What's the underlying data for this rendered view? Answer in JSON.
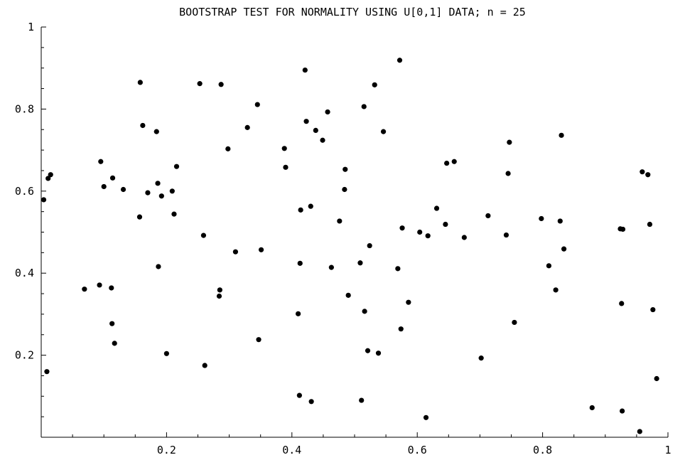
{
  "chart_data": {
    "type": "scatter",
    "title": "BOOTSTRAP TEST FOR NORMALITY USING U[0,1] DATA; n = 25",
    "xlabel": "",
    "ylabel": "",
    "xlim": [
      0,
      1
    ],
    "ylim": [
      0,
      1
    ],
    "x_ticks": [
      0.2,
      0.4,
      0.6,
      0.8,
      1
    ],
    "x_tick_labels": [
      "0.2",
      "0.4",
      "0.6",
      "0.8",
      "1"
    ],
    "y_ticks": [
      0.2,
      0.4,
      0.6,
      0.8,
      1
    ],
    "y_tick_labels": [
      "0.2",
      "0.4",
      "0.6",
      "0.8",
      "1"
    ],
    "grid": false,
    "marker_color": "#000000",
    "points": [
      [
        0.004,
        0.579
      ],
      [
        0.009,
        0.16
      ],
      [
        0.011,
        0.631
      ],
      [
        0.015,
        0.64
      ],
      [
        0.069,
        0.361
      ],
      [
        0.093,
        0.371
      ],
      [
        0.095,
        0.672
      ],
      [
        0.1,
        0.611
      ],
      [
        0.112,
        0.364
      ],
      [
        0.113,
        0.277
      ],
      [
        0.114,
        0.632
      ],
      [
        0.117,
        0.229
      ],
      [
        0.131,
        0.604
      ],
      [
        0.157,
        0.537
      ],
      [
        0.158,
        0.865
      ],
      [
        0.162,
        0.76
      ],
      [
        0.17,
        0.596
      ],
      [
        0.184,
        0.745
      ],
      [
        0.186,
        0.619
      ],
      [
        0.187,
        0.416
      ],
      [
        0.192,
        0.588
      ],
      [
        0.2,
        0.204
      ],
      [
        0.209,
        0.6
      ],
      [
        0.212,
        0.544
      ],
      [
        0.216,
        0.66
      ],
      [
        0.253,
        0.862
      ],
      [
        0.259,
        0.492
      ],
      [
        0.261,
        0.175
      ],
      [
        0.284,
        0.344
      ],
      [
        0.285,
        0.359
      ],
      [
        0.287,
        0.86
      ],
      [
        0.298,
        0.703
      ],
      [
        0.31,
        0.452
      ],
      [
        0.329,
        0.755
      ],
      [
        0.345,
        0.811
      ],
      [
        0.347,
        0.238
      ],
      [
        0.351,
        0.457
      ],
      [
        0.388,
        0.704
      ],
      [
        0.39,
        0.658
      ],
      [
        0.41,
        0.301
      ],
      [
        0.412,
        0.102
      ],
      [
        0.413,
        0.424
      ],
      [
        0.414,
        0.554
      ],
      [
        0.421,
        0.895
      ],
      [
        0.423,
        0.77
      ],
      [
        0.43,
        0.563
      ],
      [
        0.431,
        0.087
      ],
      [
        0.438,
        0.748
      ],
      [
        0.449,
        0.724
      ],
      [
        0.457,
        0.793
      ],
      [
        0.463,
        0.414
      ],
      [
        0.476,
        0.527
      ],
      [
        0.484,
        0.604
      ],
      [
        0.485,
        0.653
      ],
      [
        0.49,
        0.346
      ],
      [
        0.509,
        0.425
      ],
      [
        0.511,
        0.09
      ],
      [
        0.515,
        0.806
      ],
      [
        0.516,
        0.307
      ],
      [
        0.521,
        0.211
      ],
      [
        0.524,
        0.467
      ],
      [
        0.532,
        0.859
      ],
      [
        0.538,
        0.205
      ],
      [
        0.546,
        0.745
      ],
      [
        0.569,
        0.411
      ],
      [
        0.572,
        0.919
      ],
      [
        0.574,
        0.264
      ],
      [
        0.576,
        0.51
      ],
      [
        0.586,
        0.329
      ],
      [
        0.604,
        0.5
      ],
      [
        0.614,
        0.048
      ],
      [
        0.617,
        0.491
      ],
      [
        0.631,
        0.558
      ],
      [
        0.645,
        0.519
      ],
      [
        0.647,
        0.668
      ],
      [
        0.659,
        0.672
      ],
      [
        0.675,
        0.487
      ],
      [
        0.702,
        0.193
      ],
      [
        0.713,
        0.54
      ],
      [
        0.742,
        0.493
      ],
      [
        0.745,
        0.643
      ],
      [
        0.747,
        0.719
      ],
      [
        0.755,
        0.28
      ],
      [
        0.798,
        0.533
      ],
      [
        0.81,
        0.418
      ],
      [
        0.821,
        0.359
      ],
      [
        0.828,
        0.527
      ],
      [
        0.83,
        0.736
      ],
      [
        0.834,
        0.459
      ],
      [
        0.879,
        0.072
      ],
      [
        0.924,
        0.508
      ],
      [
        0.926,
        0.326
      ],
      [
        0.927,
        0.064
      ],
      [
        0.928,
        0.507
      ],
      [
        0.955,
        0.014
      ],
      [
        0.959,
        0.647
      ],
      [
        0.968,
        0.64
      ],
      [
        0.971,
        0.519
      ],
      [
        0.976,
        0.311
      ],
      [
        0.982,
        0.143
      ]
    ]
  }
}
